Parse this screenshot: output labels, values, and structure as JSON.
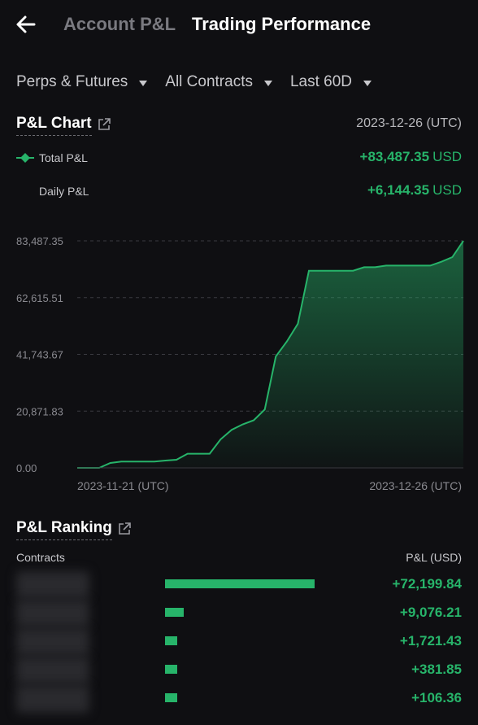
{
  "header": {
    "tab_account": "Account P&L",
    "tab_trading": "Trading Performance"
  },
  "filters": {
    "product": "Perps & Futures",
    "contracts": "All Contracts",
    "period": "Last 60D"
  },
  "pnl_chart": {
    "title": "P&L Chart",
    "date": "2023-12-26 (UTC)",
    "total_label": "Total P&L",
    "total_value": "+83,487.35",
    "total_unit": "USD",
    "daily_label": "Daily P&L",
    "daily_value": "+6,144.35",
    "daily_unit": "USD",
    "y_ticks": [
      "83,487.35",
      "62,615.51",
      "41,743.67",
      "20,871.83",
      "0.00"
    ],
    "x_start": "2023-11-21 (UTC)",
    "x_end": "2023-12-26 (UTC)"
  },
  "chart_data": {
    "type": "area",
    "title": "",
    "xlabel": "",
    "ylabel": "",
    "ylim": [
      0,
      83487.35
    ],
    "x_range": [
      "2023-11-21",
      "2023-12-26"
    ],
    "grid": true,
    "series": [
      {
        "name": "Total P&L",
        "color": "#27b46a",
        "values": [
          0,
          0,
          0,
          1800,
          2300,
          2300,
          2300,
          2300,
          2700,
          3000,
          5200,
          5200,
          5200,
          10500,
          14000,
          16000,
          17500,
          21500,
          41000,
          46500,
          53000,
          72500,
          72500,
          72500,
          72500,
          72500,
          73800,
          73800,
          74400,
          74400,
          74400,
          74400,
          74400,
          75800,
          77500,
          83487.35
        ]
      }
    ]
  },
  "ranking": {
    "title": "P&L Ranking",
    "col_contracts": "Contracts",
    "col_pnl": "P&L (USD)",
    "rows": [
      {
        "value": 72199.84,
        "label": "+72,199.84"
      },
      {
        "value": 9076.21,
        "label": "+9,076.21"
      },
      {
        "value": 1721.43,
        "label": "+1,721.43"
      },
      {
        "value": 381.85,
        "label": "+381.85"
      },
      {
        "value": 106.36,
        "label": "+106.36"
      }
    ]
  },
  "colors": {
    "accent_green": "#27b46a",
    "background": "#0f0f12"
  }
}
